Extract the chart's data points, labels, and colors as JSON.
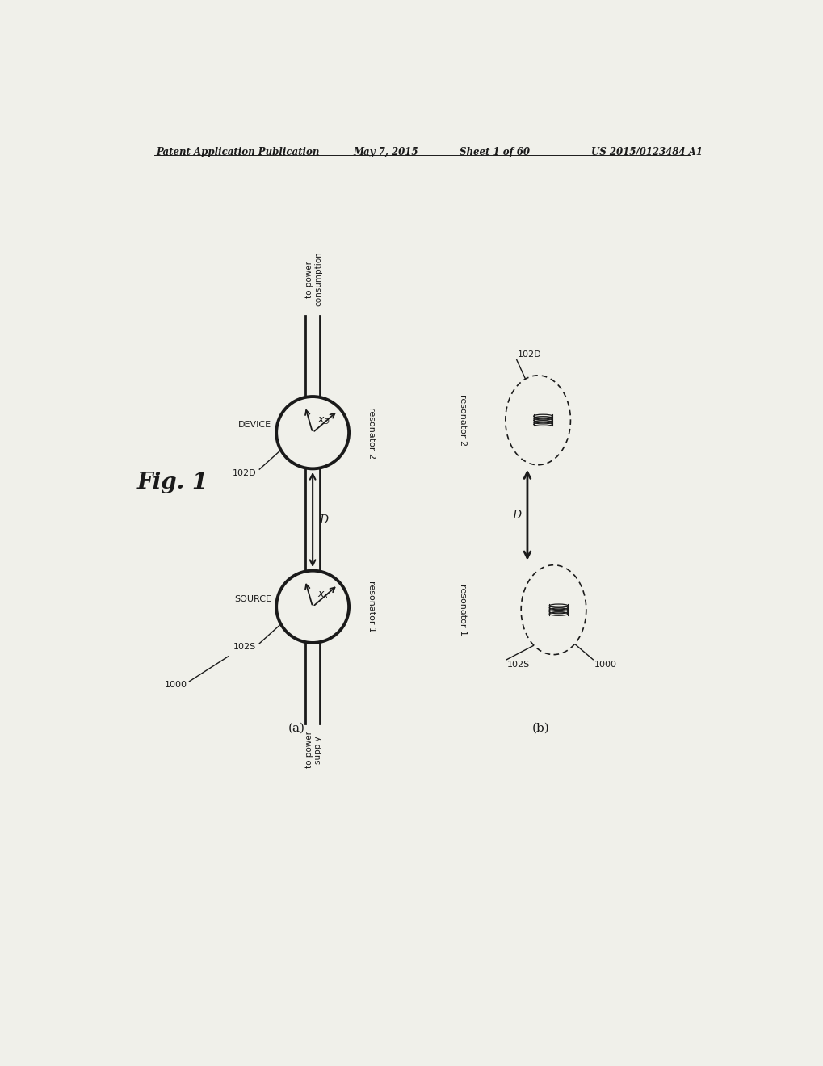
{
  "bg_color": "#f0f0ea",
  "header_text": "Patent Application Publication",
  "header_date": "May 7, 2015",
  "header_sheet": "Sheet 1 of 60",
  "header_patent": "US 2015/0123484 A1",
  "fig_label": "Fig. 1",
  "subfig_a_label": "(a)",
  "subfig_b_label": "(b)",
  "text_color": "#1a1a1a"
}
